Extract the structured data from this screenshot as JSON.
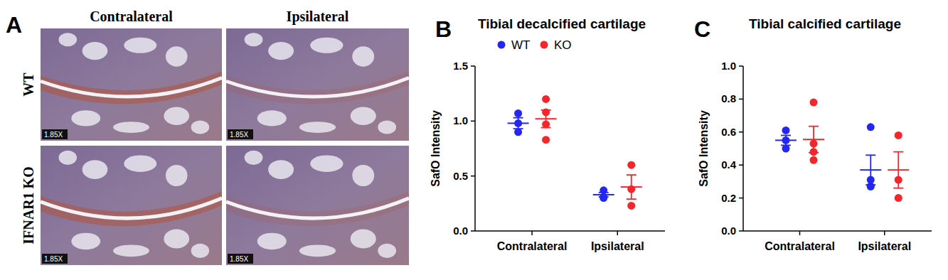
{
  "figure": {
    "panel_label": "A",
    "columns": [
      "Contralateral",
      "Ipsilateral"
    ],
    "rows": [
      "WT",
      "IFNAR1 KO"
    ],
    "magnification": "1.85X"
  },
  "chart_data": [
    {
      "type": "dot",
      "panel_label": "B",
      "title": "Tibial decalcified cartilage",
      "y_label": "SafO Intensity",
      "categories": [
        "Contralateral",
        "Ipsilateral"
      ],
      "series": [
        {
          "name": "WT",
          "color": "#2626f2",
          "values": [
            0.98,
            0.33
          ],
          "errors": [
            0.05,
            0.02
          ],
          "points": [
            [
              1.07,
              0.98,
              0.9
            ],
            [
              0.37,
              0.31,
              0.3
            ]
          ]
        },
        {
          "name": "KO",
          "color": "#f2262b",
          "values": [
            1.02,
            0.4
          ],
          "errors": [
            0.08,
            0.11
          ],
          "points": [
            [
              1.2,
              1.08,
              0.97,
              0.83
            ],
            [
              0.6,
              0.38,
              0.23
            ]
          ]
        }
      ],
      "ylim": [
        0,
        1.5
      ],
      "yticks": [
        {
          "value": 0,
          "label": "0.0"
        },
        0.5,
        {
          "value": 1,
          "label": "1.0"
        },
        {
          "value": 1.5,
          "label": "1.5"
        }
      ],
      "legend": "top"
    },
    {
      "type": "dot",
      "panel_label": "C",
      "title": "Tibial calcified cartilage",
      "y_label": "SafO Intensity",
      "categories": [
        "Contralateral",
        "Ipsilateral"
      ],
      "series": [
        {
          "color": "#2626f2",
          "values": [
            0.55,
            0.37
          ],
          "errors": [
            0.03,
            0.09
          ],
          "points": [
            [
              0.61,
              0.55,
              0.5
            ],
            [
              0.63,
              0.31,
              0.27,
              0.27
            ]
          ]
        },
        {
          "color": "#f2262b",
          "values": [
            0.555,
            0.37
          ],
          "errors": [
            0.08,
            0.11
          ],
          "points": [
            [
              0.78,
              0.53,
              0.48,
              0.43
            ],
            [
              0.58,
              0.31,
              0.2
            ]
          ]
        }
      ],
      "ylim": [
        0,
        1
      ],
      "yticks": [
        {
          "value": 0,
          "label": "0.0"
        },
        0.2,
        0.4,
        0.6,
        0.8,
        {
          "value": 1,
          "label": "1.0"
        }
      ]
    }
  ]
}
